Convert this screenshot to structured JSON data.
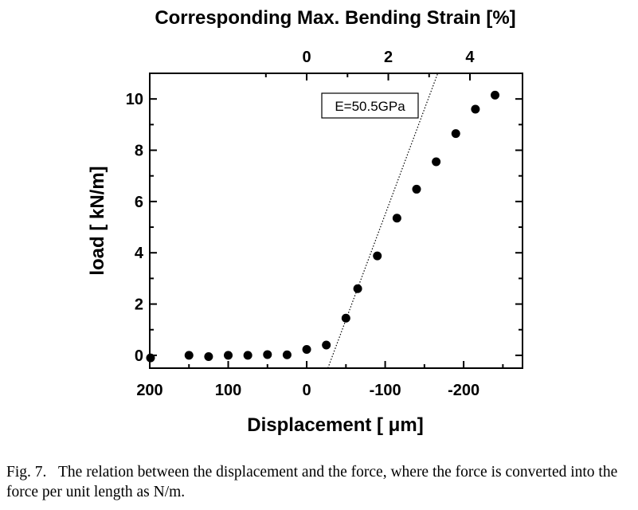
{
  "chart_data": {
    "type": "scatter",
    "xlabel": "Displacement [ μm]",
    "x_top_label": "Corresponding Max. Bending Strain [%]",
    "ylabel": "load  [ kN/m]",
    "xlim": [
      200,
      -275
    ],
    "ylim": [
      -0.5,
      11
    ],
    "x_ticks": [
      200,
      100,
      0,
      -100,
      -200
    ],
    "x_tick_labels": [
      "200",
      "100",
      "0",
      "-100",
      "-200"
    ],
    "x_top_ticks": [
      0,
      2,
      4
    ],
    "x_top_tick_labels": [
      "0",
      "2",
      "4"
    ],
    "x_top_displacement_at_0": 0,
    "x_top_displacement_at_2": -104,
    "y_ticks": [
      0,
      2,
      4,
      6,
      8,
      10
    ],
    "y_tick_labels": [
      "0",
      "2",
      "4",
      "6",
      "8",
      "10"
    ],
    "grid": false,
    "points": [
      {
        "x": 199,
        "y": -0.1
      },
      {
        "x": 150,
        "y": 0.0
      },
      {
        "x": 125,
        "y": -0.05
      },
      {
        "x": 100,
        "y": 0.0
      },
      {
        "x": 75,
        "y": 0.0
      },
      {
        "x": 50,
        "y": 0.03
      },
      {
        "x": 25,
        "y": 0.02
      },
      {
        "x": 0,
        "y": 0.23
      },
      {
        "x": -25,
        "y": 0.4
      },
      {
        "x": -50,
        "y": 1.45
      },
      {
        "x": -65,
        "y": 2.6
      },
      {
        "x": -90,
        "y": 3.88
      },
      {
        "x": -115,
        "y": 5.35
      },
      {
        "x": -140,
        "y": 6.48
      },
      {
        "x": -165,
        "y": 7.55
      },
      {
        "x": -190,
        "y": 8.65
      },
      {
        "x": -215,
        "y": 9.6
      },
      {
        "x": -240,
        "y": 10.15
      }
    ],
    "fit_line": {
      "x": [
        -27,
        -167
      ],
      "y": [
        -0.5,
        11.0
      ]
    },
    "annotations": [
      {
        "text": "E=50.5GPa"
      }
    ]
  },
  "caption": "Fig. 7.   The relation between the displacement and the force, where the force is converted into the force per unit length as N/m."
}
